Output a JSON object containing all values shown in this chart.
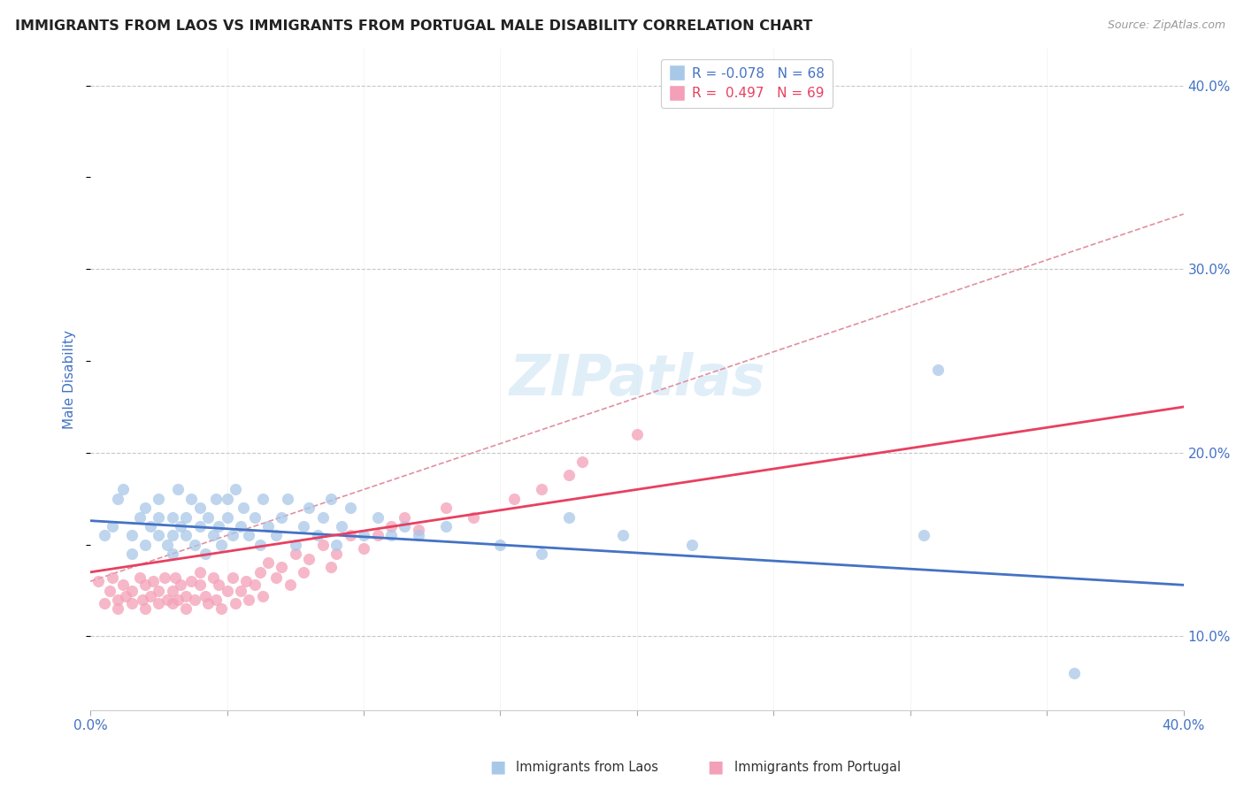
{
  "title": "IMMIGRANTS FROM LAOS VS IMMIGRANTS FROM PORTUGAL MALE DISABILITY CORRELATION CHART",
  "source": "Source: ZipAtlas.com",
  "ylabel": "Male Disability",
  "xlim": [
    0.0,
    0.4
  ],
  "ylim": [
    0.06,
    0.42
  ],
  "x_ticks_minor": [
    0.05,
    0.1,
    0.15,
    0.2,
    0.25,
    0.3,
    0.35
  ],
  "x_ticks_labeled": [
    0.0,
    0.4
  ],
  "y_ticks": [
    0.1,
    0.2,
    0.3,
    0.4
  ],
  "laos_R": -0.078,
  "laos_N": 68,
  "portugal_R": 0.497,
  "portugal_N": 69,
  "laos_color": "#a8c8e8",
  "portugal_color": "#f4a0b8",
  "laos_line_color": "#4472c4",
  "portugal_line_color": "#e84060",
  "ref_line_color": "#e090a0",
  "background_color": "#ffffff",
  "grid_color": "#c8c8c8",
  "title_color": "#222222",
  "tick_label_color": "#4472c4",
  "watermark": "ZIPatlas",
  "laos_line_start_y": 0.163,
  "laos_line_end_y": 0.128,
  "portugal_line_start_y": 0.135,
  "portugal_line_end_y": 0.225,
  "ref_line_start_x": 0.0,
  "ref_line_start_y": 0.13,
  "ref_line_end_x": 0.4,
  "ref_line_end_y": 0.33,
  "laos_scatter_x": [
    0.005,
    0.008,
    0.01,
    0.012,
    0.015,
    0.015,
    0.018,
    0.02,
    0.02,
    0.022,
    0.025,
    0.025,
    0.025,
    0.028,
    0.03,
    0.03,
    0.03,
    0.032,
    0.033,
    0.035,
    0.035,
    0.037,
    0.038,
    0.04,
    0.04,
    0.042,
    0.043,
    0.045,
    0.046,
    0.047,
    0.048,
    0.05,
    0.05,
    0.052,
    0.053,
    0.055,
    0.056,
    0.058,
    0.06,
    0.062,
    0.063,
    0.065,
    0.068,
    0.07,
    0.072,
    0.075,
    0.078,
    0.08,
    0.083,
    0.085,
    0.088,
    0.09,
    0.092,
    0.095,
    0.1,
    0.105,
    0.11,
    0.115,
    0.12,
    0.13,
    0.15,
    0.165,
    0.175,
    0.195,
    0.22,
    0.305,
    0.36,
    0.31
  ],
  "laos_scatter_y": [
    0.155,
    0.16,
    0.175,
    0.18,
    0.145,
    0.155,
    0.165,
    0.15,
    0.17,
    0.16,
    0.155,
    0.165,
    0.175,
    0.15,
    0.145,
    0.155,
    0.165,
    0.18,
    0.16,
    0.155,
    0.165,
    0.175,
    0.15,
    0.16,
    0.17,
    0.145,
    0.165,
    0.155,
    0.175,
    0.16,
    0.15,
    0.165,
    0.175,
    0.155,
    0.18,
    0.16,
    0.17,
    0.155,
    0.165,
    0.15,
    0.175,
    0.16,
    0.155,
    0.165,
    0.175,
    0.15,
    0.16,
    0.17,
    0.155,
    0.165,
    0.175,
    0.15,
    0.16,
    0.17,
    0.155,
    0.165,
    0.155,
    0.16,
    0.155,
    0.16,
    0.15,
    0.145,
    0.165,
    0.155,
    0.15,
    0.155,
    0.08,
    0.245
  ],
  "portugal_scatter_x": [
    0.003,
    0.005,
    0.007,
    0.008,
    0.01,
    0.01,
    0.012,
    0.013,
    0.015,
    0.015,
    0.018,
    0.019,
    0.02,
    0.02,
    0.022,
    0.023,
    0.025,
    0.025,
    0.027,
    0.028,
    0.03,
    0.03,
    0.031,
    0.032,
    0.033,
    0.035,
    0.035,
    0.037,
    0.038,
    0.04,
    0.04,
    0.042,
    0.043,
    0.045,
    0.046,
    0.047,
    0.048,
    0.05,
    0.052,
    0.053,
    0.055,
    0.057,
    0.058,
    0.06,
    0.062,
    0.063,
    0.065,
    0.068,
    0.07,
    0.073,
    0.075,
    0.078,
    0.08,
    0.085,
    0.088,
    0.09,
    0.095,
    0.1,
    0.105,
    0.11,
    0.115,
    0.12,
    0.13,
    0.14,
    0.155,
    0.165,
    0.175,
    0.18,
    0.2
  ],
  "portugal_scatter_y": [
    0.13,
    0.118,
    0.125,
    0.132,
    0.12,
    0.115,
    0.128,
    0.122,
    0.125,
    0.118,
    0.132,
    0.12,
    0.128,
    0.115,
    0.122,
    0.13,
    0.118,
    0.125,
    0.132,
    0.12,
    0.125,
    0.118,
    0.132,
    0.12,
    0.128,
    0.122,
    0.115,
    0.13,
    0.12,
    0.128,
    0.135,
    0.122,
    0.118,
    0.132,
    0.12,
    0.128,
    0.115,
    0.125,
    0.132,
    0.118,
    0.125,
    0.13,
    0.12,
    0.128,
    0.135,
    0.122,
    0.14,
    0.132,
    0.138,
    0.128,
    0.145,
    0.135,
    0.142,
    0.15,
    0.138,
    0.145,
    0.155,
    0.148,
    0.155,
    0.16,
    0.165,
    0.158,
    0.17,
    0.165,
    0.175,
    0.18,
    0.188,
    0.195,
    0.21
  ]
}
